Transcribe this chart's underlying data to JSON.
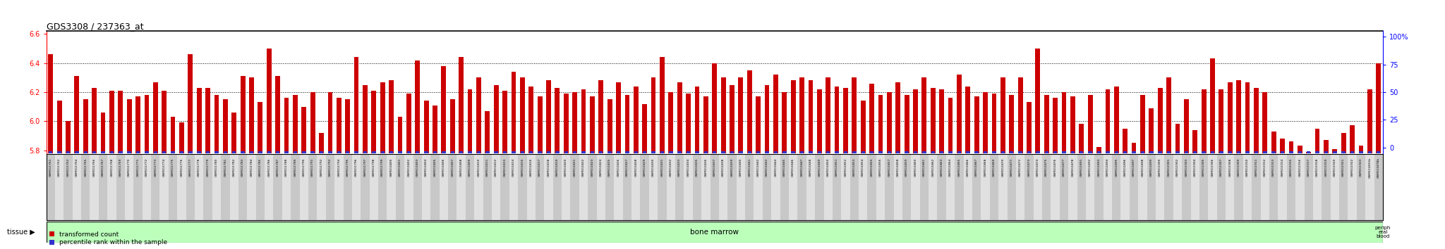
{
  "title": "GDS3308 / 237363_at",
  "ylim_left": [
    5.78,
    6.62
  ],
  "ylim_right": [
    -5,
    105
  ],
  "yticks_left": [
    5.8,
    6.0,
    6.2,
    6.4,
    6.6
  ],
  "yticks_right": [
    0,
    25,
    50,
    75,
    100
  ],
  "ylabel_right_labels": [
    "0",
    "25",
    "50",
    "75",
    "100%"
  ],
  "bar_color": "#cc0000",
  "dot_color": "#3333cc",
  "bg_color": "#ffffff",
  "tissue_band_color_bone_marrow": "#bbffbb",
  "tissue_band_color_peripheral_blood": "#44aa44",
  "label_box_color": "#d8d8d8",
  "samples": [
    "GSM311761",
    "GSM311762",
    "GSM311763",
    "GSM311764",
    "GSM311765",
    "GSM311766",
    "GSM311767",
    "GSM311768",
    "GSM311769",
    "GSM311770",
    "GSM311771",
    "GSM311772",
    "GSM311773",
    "GSM311774",
    "GSM311775",
    "GSM311776",
    "GSM311777",
    "GSM311778",
    "GSM311779",
    "GSM311780",
    "GSM311781",
    "GSM311782",
    "GSM311783",
    "GSM311784",
    "GSM311785",
    "GSM311786",
    "GSM311787",
    "GSM311788",
    "GSM311789",
    "GSM311790",
    "GSM311791",
    "GSM311792",
    "GSM311793",
    "GSM311794",
    "GSM311795",
    "GSM311796",
    "GSM311797",
    "GSM311798",
    "GSM311799",
    "GSM311800",
    "GSM311801",
    "GSM311802",
    "GSM311803",
    "GSM311804",
    "GSM311805",
    "GSM311806",
    "GSM311807",
    "GSM311808",
    "GSM311809",
    "GSM311810",
    "GSM311811",
    "GSM311812",
    "GSM311813",
    "GSM311814",
    "GSM311815",
    "GSM311816",
    "GSM311817",
    "GSM311818",
    "GSM311819",
    "GSM311820",
    "GSM311821",
    "GSM311822",
    "GSM311823",
    "GSM311824",
    "GSM311825",
    "GSM311826",
    "GSM311827",
    "GSM311828",
    "GSM311829",
    "GSM311830",
    "GSM311831",
    "GSM311832",
    "GSM311833",
    "GSM311834",
    "GSM311835",
    "GSM311836",
    "GSM311837",
    "GSM311838",
    "GSM311839",
    "GSM311840",
    "GSM311841",
    "GSM311842",
    "GSM311843",
    "GSM311844",
    "GSM311845",
    "GSM311846",
    "GSM311847",
    "GSM311848",
    "GSM311849",
    "GSM311850",
    "GSM311851",
    "GSM311852",
    "GSM311853",
    "GSM311854",
    "GSM311855",
    "GSM311856",
    "GSM311857",
    "GSM311858",
    "GSM311859",
    "GSM311860",
    "GSM311861",
    "GSM311862",
    "GSM311863",
    "GSM311864",
    "GSM311865",
    "GSM311866",
    "GSM311867",
    "GSM311868",
    "GSM311869",
    "GSM311870",
    "GSM311871",
    "GSM311872",
    "GSM311873",
    "GSM311874",
    "GSM311875",
    "GSM311876",
    "GSM311877",
    "GSM311878",
    "GSM311891",
    "GSM311892",
    "GSM311893",
    "GSM311894",
    "GSM311895",
    "GSM311896",
    "GSM311897",
    "GSM311898",
    "GSM311899",
    "GSM311900",
    "GSM311901",
    "GSM311902",
    "GSM311903",
    "GSM311904",
    "GSM311905",
    "GSM311906",
    "GSM311907",
    "GSM311908",
    "GSM311909",
    "GSM311910",
    "GSM311911",
    "GSM311912",
    "GSM311913",
    "GSM311914",
    "GSM311915",
    "GSM311916",
    "GSM311917",
    "GSM311918",
    "GSM311919",
    "GSM311920",
    "GSM311921",
    "GSM311922",
    "GSM311923",
    "GSM311831b",
    "GSM311878b"
  ],
  "values": [
    6.46,
    6.14,
    6.0,
    6.31,
    6.15,
    6.23,
    6.06,
    6.21,
    6.21,
    6.15,
    6.17,
    6.18,
    6.27,
    6.21,
    6.03,
    5.99,
    6.46,
    6.23,
    6.23,
    6.18,
    6.15,
    6.06,
    6.31,
    6.3,
    6.13,
    6.5,
    6.31,
    6.16,
    6.18,
    6.1,
    6.2,
    5.92,
    6.2,
    6.16,
    6.15,
    6.44,
    6.25,
    6.21,
    6.27,
    6.28,
    6.03,
    6.19,
    6.42,
    6.14,
    6.11,
    6.38,
    6.15,
    6.44,
    6.22,
    6.3,
    6.07,
    6.25,
    6.21,
    6.34,
    6.3,
    6.24,
    6.17,
    6.28,
    6.23,
    6.19,
    6.2,
    6.22,
    6.17,
    6.28,
    6.15,
    6.27,
    6.18,
    6.24,
    6.12,
    6.3,
    6.44,
    6.2,
    6.27,
    6.19,
    6.24,
    6.17,
    6.4,
    6.3,
    6.25,
    6.3,
    6.35,
    6.17,
    6.25,
    6.32,
    6.2,
    6.28,
    6.3,
    6.28,
    6.22,
    6.3,
    6.24,
    6.23,
    6.3,
    6.14,
    6.26,
    6.18,
    6.2,
    6.27,
    6.18,
    6.22,
    6.3,
    6.23,
    6.22,
    6.16,
    6.32,
    6.24,
    6.17,
    6.2,
    6.19,
    6.3,
    6.18,
    6.3,
    6.13,
    6.5,
    6.18,
    6.16,
    6.2,
    6.17,
    5.98,
    6.18,
    5.82,
    6.22,
    6.24,
    5.95,
    5.85,
    6.18,
    6.09,
    6.23,
    6.3,
    5.98,
    6.15,
    5.94,
    6.22,
    6.43,
    6.22,
    6.27,
    6.28,
    6.27,
    6.23,
    6.2,
    5.93,
    5.88,
    5.86,
    5.83,
    5.79,
    5.95,
    5.87,
    5.81,
    5.92,
    5.97,
    5.83,
    6.22,
    6.4
  ],
  "percentiles": [
    5,
    3,
    2,
    4,
    3,
    4,
    2,
    3,
    3,
    3,
    3,
    3,
    4,
    3,
    2,
    2,
    5,
    4,
    4,
    3,
    3,
    2,
    4,
    4,
    3,
    5,
    4,
    3,
    3,
    3,
    3,
    2,
    3,
    3,
    3,
    5,
    4,
    3,
    4,
    4,
    2,
    3,
    5,
    3,
    3,
    5,
    3,
    5,
    4,
    4,
    2,
    4,
    3,
    5,
    4,
    4,
    3,
    4,
    4,
    3,
    3,
    3,
    3,
    4,
    3,
    4,
    3,
    4,
    3,
    4,
    5,
    3,
    4,
    3,
    4,
    3,
    5,
    4,
    4,
    4,
    5,
    3,
    4,
    5,
    3,
    4,
    4,
    4,
    4,
    4,
    4,
    4,
    4,
    3,
    4,
    3,
    3,
    4,
    3,
    4,
    4,
    4,
    4,
    3,
    5,
    4,
    3,
    3,
    3,
    4,
    3,
    4,
    3,
    5,
    3,
    3,
    3,
    3,
    3,
    4,
    3,
    5,
    4,
    3,
    2,
    4,
    3,
    4,
    5,
    3,
    4,
    3,
    5,
    6,
    5,
    5,
    5,
    5,
    5,
    4,
    3,
    3,
    3,
    2,
    2,
    3,
    2,
    2,
    3,
    3,
    2,
    5,
    6
  ],
  "n_bone_marrow": 153,
  "tissue_label": "tissue",
  "bone_marrow_label": "bone marrow",
  "peripheral_blood_label": "periph\neral\nblood",
  "legend_transformed": "transformed count",
  "legend_percentile": "percentile rank within the sample"
}
